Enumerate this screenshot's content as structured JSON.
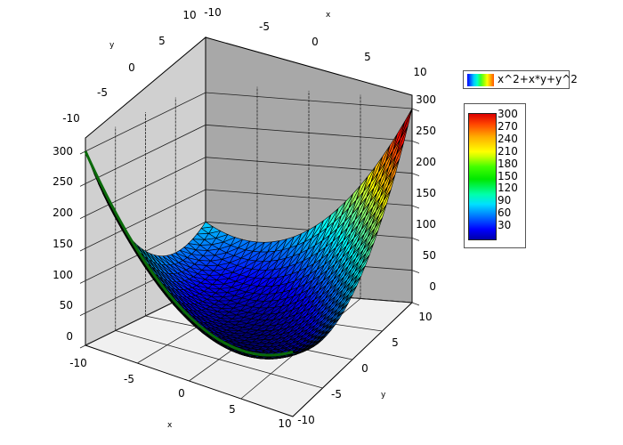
{
  "chart_data": {
    "type": "surface3d",
    "title": "",
    "function": "z = x^2 + x*y + y^2",
    "legend": [
      {
        "label": "x^2+x*y+y^2",
        "colormap": "jet"
      }
    ],
    "x": {
      "label": "x",
      "range": [
        -10,
        10
      ],
      "ticks": [
        -10,
        -5,
        0,
        5,
        10
      ]
    },
    "y": {
      "label": "y",
      "range": [
        -10,
        10
      ],
      "ticks": [
        -10,
        -5,
        0,
        5,
        10
      ]
    },
    "z": {
      "label": "",
      "range": [
        0,
        300
      ],
      "ticks": [
        0,
        50,
        100,
        150,
        200,
        250,
        300
      ]
    },
    "corner_values": [
      {
        "x": -10,
        "y": -10,
        "z": 300
      },
      {
        "x": -10,
        "y": 10,
        "z": 100
      },
      {
        "x": 10,
        "y": -10,
        "z": 100
      },
      {
        "x": 10,
        "y": 10,
        "z": 300
      },
      {
        "x": 0,
        "y": 0,
        "z": 0
      }
    ],
    "colorbar": {
      "min": 0,
      "max": 300,
      "ticks": [
        30,
        60,
        90,
        120,
        150,
        180,
        210,
        240,
        270,
        300
      ]
    },
    "grid": true,
    "mesh": "triangular"
  },
  "labels": {
    "top_x_axis_title": "x",
    "top_y_axis_title": "y",
    "bottom_x_axis_title": "x",
    "bottom_y_axis_title": "y",
    "top_y_ticks": [
      "-10",
      "-5",
      "0",
      "5",
      "10"
    ],
    "top_x_ticks": [
      "-10",
      "-5",
      "0",
      "5",
      "10"
    ],
    "bottom_x_ticks": [
      "-10",
      "-5",
      "0",
      "5",
      "10"
    ],
    "bottom_y_ticks": [
      "-10",
      "-5",
      "0",
      "5",
      "10"
    ],
    "left_z_ticks": [
      "300",
      "250",
      "200",
      "150",
      "100",
      "50",
      "0"
    ],
    "right_z_ticks": [
      "300",
      "250",
      "200",
      "150",
      "100",
      "50",
      "0"
    ]
  },
  "legend": {
    "label": "x^2+x*y+y^2"
  },
  "colorbar": {
    "labels": [
      "300",
      "270",
      "240",
      "210",
      "180",
      "150",
      "120",
      "90",
      "60",
      "30"
    ]
  }
}
